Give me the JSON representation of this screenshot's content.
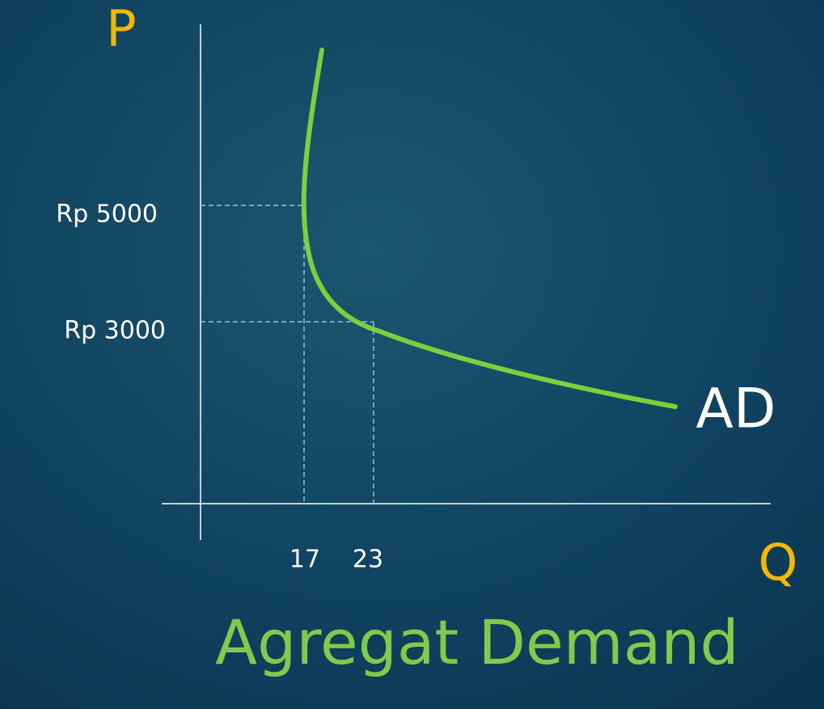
{
  "axes": {
    "y_label": "P",
    "x_label": "Q"
  },
  "y_ticks": [
    "Rp 5000",
    "Rp 3000"
  ],
  "x_ticks": [
    "17",
    "23"
  ],
  "curve_label": "AD",
  "title": "Agregat Demand"
}
